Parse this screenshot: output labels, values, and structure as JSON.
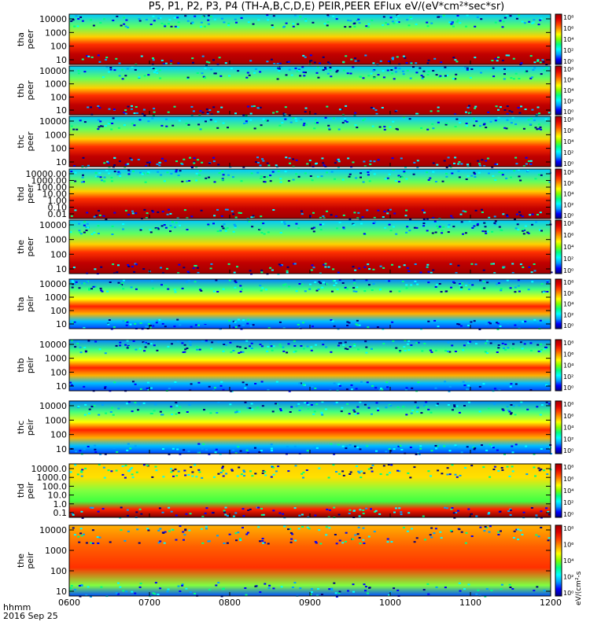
{
  "title": "P5, P1, P2, P3, P4 (TH-A,B,C,D,E) PEIR,PEER EFlux eV/(eV*cm²*sec*sr)",
  "footer": {
    "time_label": "hhmm",
    "date_label": "2016 Sep 25"
  },
  "colorbar_label": "eV/(cm²-s",
  "colors": {
    "frame": "#000000",
    "background": "#ffffff"
  },
  "chart_data": {
    "type": "heatmap",
    "x_ticks": [
      "0600",
      "0700",
      "0800",
      "0900",
      "1000",
      "1100",
      "1200"
    ],
    "x_range": [
      "0600",
      "1200"
    ],
    "colorbar_ticks": [
      "10⁸",
      "10⁶",
      "10⁴",
      "10²",
      "10⁰"
    ],
    "colormap": [
      "#000080",
      "#0000ff",
      "#00a0ff",
      "#00ffff",
      "#00ff80",
      "#80ff00",
      "#ffff00",
      "#ffa000",
      "#ff4000",
      "#e00000",
      "#a00000"
    ],
    "panels": [
      {
        "probe": "tha",
        "type": "peer",
        "ylabel": [
          "tha",
          "peer"
        ],
        "yticks": [
          "10000",
          "1000",
          "100",
          "10"
        ],
        "ylim": [
          10,
          20000
        ],
        "scale": "log"
      },
      {
        "probe": "thb",
        "type": "peer",
        "ylabel": [
          "thb",
          "peer"
        ],
        "yticks": [
          "10000",
          "1000",
          "100",
          "10"
        ],
        "ylim": [
          10,
          20000
        ],
        "scale": "log"
      },
      {
        "probe": "thc",
        "type": "peer",
        "ylabel": [
          "thc",
          "peer"
        ],
        "yticks": [
          "10000",
          "1000",
          "100",
          "10"
        ],
        "ylim": [
          10,
          20000
        ],
        "scale": "log"
      },
      {
        "probe": "thd",
        "type": "peer",
        "ylabel": [
          "thd",
          "peer"
        ],
        "yticks": [
          "10000.00",
          "1000.00",
          "100.00",
          "10.00",
          "1.00",
          "0.10",
          "0.01"
        ],
        "ylim": [
          0.01,
          20000
        ],
        "scale": "log"
      },
      {
        "probe": "the",
        "type": "peer",
        "ylabel": [
          "the",
          "peer"
        ],
        "yticks": [
          "10000",
          "1000",
          "100",
          "10"
        ],
        "ylim": [
          5,
          20000
        ],
        "scale": "log"
      },
      {
        "probe": "tha",
        "type": "peir",
        "ylabel": [
          "tha",
          "peir"
        ],
        "yticks": [
          "10000",
          "1000",
          "100",
          "10"
        ],
        "ylim": [
          5,
          20000
        ],
        "scale": "log"
      },
      {
        "probe": "thb",
        "type": "peir",
        "ylabel": [
          "thb",
          "peir"
        ],
        "yticks": [
          "10000",
          "1000",
          "100",
          "10"
        ],
        "ylim": [
          5,
          20000
        ],
        "scale": "log"
      },
      {
        "probe": "thc",
        "type": "peir",
        "ylabel": [
          "thc",
          "peir"
        ],
        "yticks": [
          "10000",
          "1000",
          "100",
          "10"
        ],
        "ylim": [
          5,
          20000
        ],
        "scale": "log"
      },
      {
        "probe": "thd",
        "type": "peir",
        "ylabel": [
          "thd",
          "peir"
        ],
        "yticks": [
          "10000.0",
          "1000.0",
          "100.0",
          "10.0",
          "1.0",
          "0.1"
        ],
        "ylim": [
          0.1,
          20000
        ],
        "scale": "log"
      },
      {
        "probe": "the",
        "type": "peir",
        "ylabel": [
          "the",
          "peir"
        ],
        "yticks": [
          "10000",
          "1000",
          "100",
          "10"
        ],
        "ylim": [
          5,
          20000
        ],
        "scale": "log"
      }
    ]
  }
}
